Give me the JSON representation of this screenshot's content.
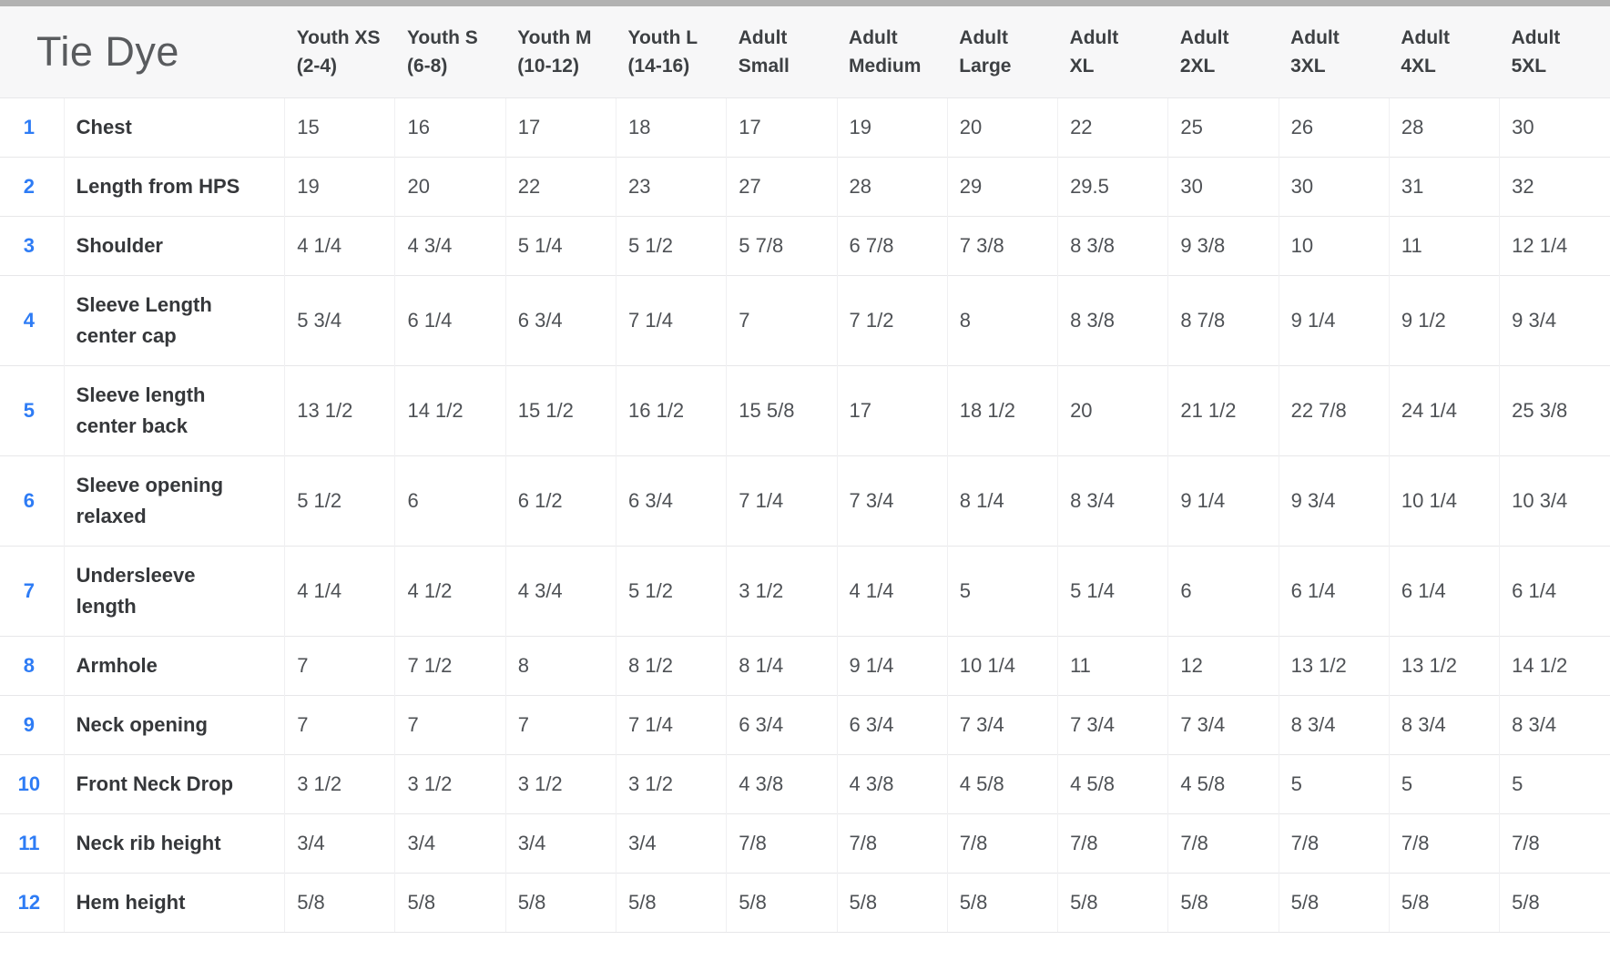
{
  "table": {
    "title": "Tie Dye",
    "columns": [
      {
        "line1": "Youth XS",
        "line2": "(2-4)"
      },
      {
        "line1": "Youth S",
        "line2": "(6-8)"
      },
      {
        "line1": "Youth M",
        "line2": "(10-12)"
      },
      {
        "line1": "Youth L",
        "line2": "(14-16)"
      },
      {
        "line1": "Adult",
        "line2": "Small"
      },
      {
        "line1": "Adult",
        "line2": "Medium"
      },
      {
        "line1": "Adult",
        "line2": "Large"
      },
      {
        "line1": "Adult",
        "line2": "XL"
      },
      {
        "line1": "Adult",
        "line2": "2XL"
      },
      {
        "line1": "Adult",
        "line2": "3XL"
      },
      {
        "line1": "Adult",
        "line2": "4XL"
      },
      {
        "line1": "Adult",
        "line2": "5XL"
      }
    ],
    "rows": [
      {
        "num": "1",
        "label": "Chest",
        "values": [
          "15",
          "16",
          "17",
          "18",
          "17",
          "19",
          "20",
          "22",
          "25",
          "26",
          "28",
          "30"
        ]
      },
      {
        "num": "2",
        "label": "Length from HPS",
        "values": [
          "19",
          "20",
          "22",
          "23",
          "27",
          "28",
          "29",
          "29.5",
          "30",
          "30",
          "31",
          "32"
        ]
      },
      {
        "num": "3",
        "label": "Shoulder",
        "values": [
          "4 1/4",
          "4 3/4",
          "5 1/4",
          "5 1/2",
          "5 7/8",
          "6 7/8",
          "7 3/8",
          "8 3/8",
          "9 3/8",
          "10",
          "11",
          "12 1/4"
        ]
      },
      {
        "num": "4",
        "label": "Sleeve Length center cap",
        "values": [
          "5 3/4",
          "6 1/4",
          "6 3/4",
          "7 1/4",
          "7",
          "7 1/2",
          "8",
          "8 3/8",
          "8 7/8",
          "9 1/4",
          "9 1/2",
          "9 3/4"
        ]
      },
      {
        "num": "5",
        "label": "Sleeve length center back",
        "values": [
          "13 1/2",
          "14 1/2",
          "15 1/2",
          "16 1/2",
          "15 5/8",
          "17",
          "18 1/2",
          "20",
          "21 1/2",
          "22 7/8",
          "24 1/4",
          "25 3/8"
        ]
      },
      {
        "num": "6",
        "label": "Sleeve opening relaxed",
        "values": [
          "5 1/2",
          "6",
          "6 1/2",
          "6 3/4",
          "7 1/4",
          "7 3/4",
          "8 1/4",
          "8 3/4",
          "9 1/4",
          "9 3/4",
          "10 1/4",
          "10 3/4"
        ]
      },
      {
        "num": "7",
        "label": "Undersleeve length",
        "values": [
          "4 1/4",
          "4 1/2",
          "4 3/4",
          "5 1/2",
          "3 1/2",
          "4 1/4",
          "5",
          "5 1/4",
          "6",
          "6 1/4",
          "6 1/4",
          "6 1/4"
        ]
      },
      {
        "num": "8",
        "label": "Armhole",
        "values": [
          "7",
          "7 1/2",
          "8",
          "8 1/2",
          "8 1/4",
          "9 1/4",
          "10 1/4",
          "11",
          "12",
          "13 1/2",
          "13 1/2",
          "14 1/2"
        ]
      },
      {
        "num": "9",
        "label": "Neck opening",
        "values": [
          "7",
          "7",
          "7",
          "7 1/4",
          "6 3/4",
          "6 3/4",
          "7 3/4",
          "7 3/4",
          "7 3/4",
          "8 3/4",
          "8 3/4",
          "8 3/4"
        ]
      },
      {
        "num": "10",
        "label": "Front Neck Drop",
        "values": [
          "3 1/2",
          "3 1/2",
          "3 1/2",
          "3 1/2",
          "4 3/8",
          "4 3/8",
          "4 5/8",
          "4 5/8",
          "4 5/8",
          "5",
          "5",
          "5"
        ]
      },
      {
        "num": "11",
        "label": "Neck rib height",
        "values": [
          "3/4",
          "3/4",
          "3/4",
          "3/4",
          "7/8",
          "7/8",
          "7/8",
          "7/8",
          "7/8",
          "7/8",
          "7/8",
          "7/8"
        ]
      },
      {
        "num": "12",
        "label": "Hem height",
        "values": [
          "5/8",
          "5/8",
          "5/8",
          "5/8",
          "5/8",
          "5/8",
          "5/8",
          "5/8",
          "5/8",
          "5/8",
          "5/8",
          "5/8"
        ]
      }
    ]
  },
  "colors": {
    "accent_blue": "#2e7cf5",
    "header_background": "#f7f7f8",
    "title_gray": "#595b5e",
    "top_bar_gray": "#b2b2b2"
  }
}
